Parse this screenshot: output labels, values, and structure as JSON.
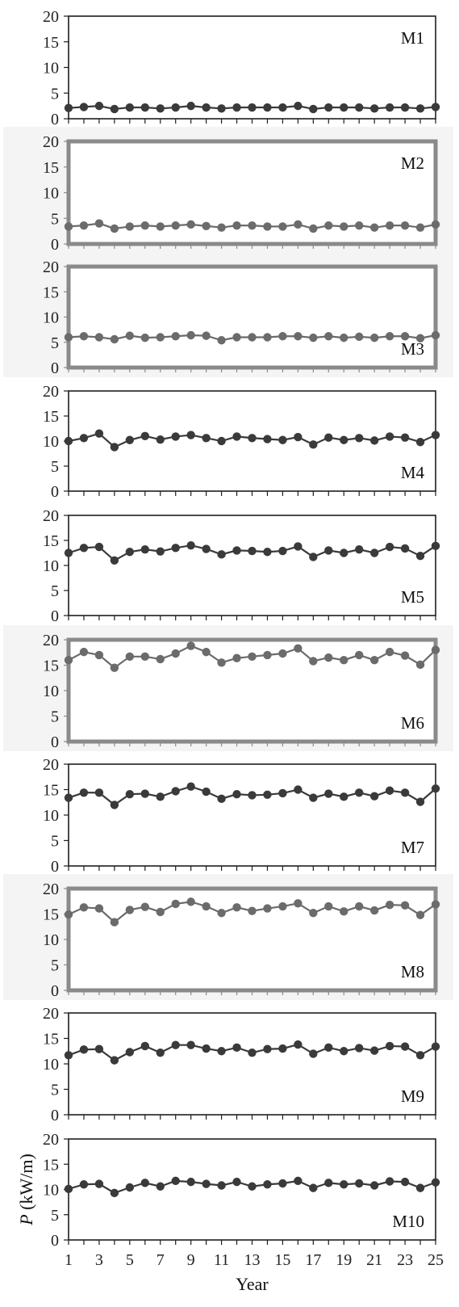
{
  "chart_data": {
    "type": "line",
    "x_label": "Year",
    "y_label_italic": "P",
    "y_label_unit": " (kW/m)",
    "x": [
      1,
      2,
      3,
      4,
      5,
      6,
      7,
      8,
      9,
      10,
      11,
      12,
      13,
      14,
      15,
      16,
      17,
      18,
      19,
      20,
      21,
      22,
      23,
      24,
      25
    ],
    "x_ticks": [
      1,
      3,
      5,
      7,
      9,
      11,
      13,
      15,
      17,
      19,
      21,
      23,
      25
    ],
    "ylim": [
      0,
      20
    ],
    "y_ticks": [
      0,
      5,
      10,
      15,
      20
    ],
    "grid": false,
    "panels": [
      {
        "label": "M1",
        "style": "sharp",
        "values": [
          2.1,
          2.3,
          2.5,
          1.9,
          2.2,
          2.2,
          2.0,
          2.2,
          2.5,
          2.2,
          2.0,
          2.2,
          2.2,
          2.2,
          2.2,
          2.5,
          1.9,
          2.2,
          2.2,
          2.2,
          2.0,
          2.2,
          2.2,
          2.0,
          2.3
        ]
      },
      {
        "label": "M2",
        "style": "faded",
        "values": [
          3.4,
          3.6,
          4.0,
          3.0,
          3.4,
          3.6,
          3.4,
          3.6,
          3.8,
          3.5,
          3.2,
          3.6,
          3.6,
          3.4,
          3.4,
          3.8,
          3.0,
          3.6,
          3.4,
          3.6,
          3.2,
          3.6,
          3.6,
          3.2,
          3.8
        ]
      },
      {
        "label": "M3",
        "style": "faded",
        "values": [
          6.0,
          6.2,
          6.0,
          5.6,
          6.3,
          5.9,
          6.0,
          6.2,
          6.4,
          6.3,
          5.4,
          6.0,
          6.0,
          6.0,
          6.2,
          6.2,
          5.9,
          6.2,
          5.9,
          6.1,
          5.9,
          6.2,
          6.2,
          5.8,
          6.4
        ]
      },
      {
        "label": "M4",
        "style": "sharp",
        "values": [
          10.0,
          10.6,
          11.5,
          8.8,
          10.2,
          11.0,
          10.3,
          10.9,
          11.2,
          10.6,
          10.0,
          10.9,
          10.6,
          10.4,
          10.2,
          10.8,
          9.3,
          10.7,
          10.2,
          10.6,
          10.1,
          10.9,
          10.7,
          9.8,
          11.2
        ]
      },
      {
        "label": "M5",
        "style": "sharp",
        "values": [
          12.5,
          13.5,
          13.7,
          11.0,
          12.7,
          13.2,
          12.8,
          13.5,
          14.0,
          13.3,
          12.2,
          13.0,
          12.9,
          12.7,
          12.9,
          13.8,
          11.7,
          13.0,
          12.5,
          13.2,
          12.5,
          13.7,
          13.4,
          11.9,
          13.9
        ]
      },
      {
        "label": "M6",
        "style": "faded",
        "values": [
          16.0,
          17.6,
          17.0,
          14.5,
          16.7,
          16.7,
          16.2,
          17.3,
          18.8,
          17.6,
          15.5,
          16.4,
          16.7,
          17.0,
          17.3,
          18.3,
          15.8,
          16.5,
          16.0,
          17.0,
          16.0,
          17.6,
          16.9,
          15.1,
          18.0
        ]
      },
      {
        "label": "M7",
        "style": "sharp",
        "values": [
          13.4,
          14.4,
          14.4,
          12.0,
          14.1,
          14.2,
          13.6,
          14.7,
          15.6,
          14.6,
          13.2,
          14.1,
          13.9,
          14.0,
          14.3,
          15.0,
          13.4,
          14.2,
          13.6,
          14.4,
          13.7,
          14.8,
          14.4,
          12.6,
          15.2
        ]
      },
      {
        "label": "M8",
        "style": "faded",
        "values": [
          14.9,
          16.3,
          16.1,
          13.4,
          15.8,
          16.4,
          15.4,
          17.0,
          17.4,
          16.5,
          15.2,
          16.3,
          15.6,
          16.1,
          16.5,
          17.1,
          15.2,
          16.5,
          15.5,
          16.5,
          15.7,
          16.8,
          16.7,
          14.8,
          16.9
        ]
      },
      {
        "label": "M9",
        "style": "sharp",
        "values": [
          11.7,
          12.8,
          12.9,
          10.7,
          12.3,
          13.5,
          12.2,
          13.7,
          13.7,
          13.0,
          12.5,
          13.2,
          12.2,
          12.9,
          13.0,
          13.8,
          12.0,
          13.2,
          12.5,
          13.1,
          12.6,
          13.5,
          13.4,
          11.7,
          13.4
        ]
      },
      {
        "label": "M10",
        "style": "sharp",
        "values": [
          10.1,
          11.0,
          11.1,
          9.3,
          10.4,
          11.3,
          10.6,
          11.7,
          11.5,
          11.1,
          10.8,
          11.5,
          10.6,
          11.0,
          11.2,
          11.7,
          10.3,
          11.3,
          11.0,
          11.2,
          10.8,
          11.6,
          11.5,
          10.3,
          11.4
        ]
      }
    ]
  }
}
